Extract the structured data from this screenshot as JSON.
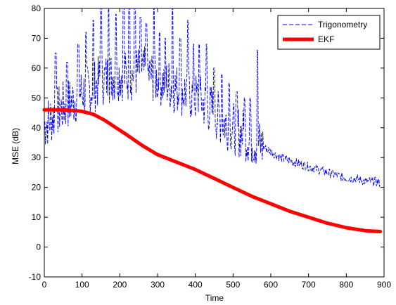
{
  "chart_data": {
    "type": "line",
    "title": "",
    "xlabel": "Time",
    "ylabel": "MSE (dB)",
    "xlim": [
      0,
      900
    ],
    "ylim": [
      -10,
      80
    ],
    "x_ticks": [
      0,
      100,
      200,
      300,
      400,
      500,
      600,
      700,
      800,
      900
    ],
    "y_ticks": [
      -10,
      0,
      10,
      20,
      30,
      40,
      50,
      60,
      70,
      80
    ],
    "x_tick_labels": [
      "0",
      "100",
      "200",
      "300",
      "400",
      "500",
      "600",
      "700",
      "800",
      "900"
    ],
    "y_tick_labels": [
      "-10",
      "0",
      "10",
      "20",
      "30",
      "40",
      "50",
      "60",
      "70",
      "80"
    ],
    "grid": false,
    "legend_position": "top-right",
    "series": [
      {
        "name": "Trigonometry",
        "color": "#0000ff",
        "style": "dashed",
        "x": [
          0,
          25,
          50,
          75,
          100,
          125,
          150,
          175,
          200,
          225,
          250,
          275,
          300,
          325,
          350,
          375,
          400,
          425,
          450,
          475,
          500,
          525,
          550,
          575,
          600,
          625,
          650,
          675,
          700,
          725,
          750,
          775,
          800,
          825,
          850,
          875,
          890
        ],
        "y": [
          41,
          44,
          47,
          49,
          52,
          53,
          56,
          57,
          58,
          57,
          59,
          58,
          56,
          55,
          53,
          52,
          50,
          48,
          45,
          42,
          40,
          38,
          36,
          34,
          32,
          30,
          29,
          28,
          27,
          26,
          25,
          24,
          23,
          23,
          22,
          22,
          21.5
        ],
        "peaks_x": [
          30,
          60,
          90,
          110,
          130,
          150,
          170,
          190,
          210,
          225,
          240,
          255,
          270,
          290,
          305,
          320,
          340,
          360,
          380,
          395,
          410,
          430,
          450,
          470,
          490,
          510,
          530,
          545,
          565
        ],
        "peaks_y": [
          65,
          62,
          68,
          72,
          76,
          80,
          80,
          78,
          80,
          80,
          80,
          77,
          75,
          80,
          72,
          70,
          80,
          70,
          76,
          68,
          68,
          68,
          60,
          58,
          55,
          52,
          50,
          50,
          66
        ]
      },
      {
        "name": "EKF",
        "color": "#ff0000",
        "style": "solid-thick",
        "x": [
          0,
          50,
          100,
          130,
          160,
          190,
          220,
          260,
          300,
          350,
          400,
          450,
          500,
          550,
          600,
          650,
          700,
          750,
          800,
          850,
          890
        ],
        "y": [
          46,
          46,
          45.5,
          44.5,
          42.5,
          40,
          37.5,
          34,
          31,
          28.5,
          26,
          23,
          20,
          17,
          14.5,
          12,
          10,
          8,
          6.5,
          5.5,
          5.2
        ]
      }
    ]
  }
}
